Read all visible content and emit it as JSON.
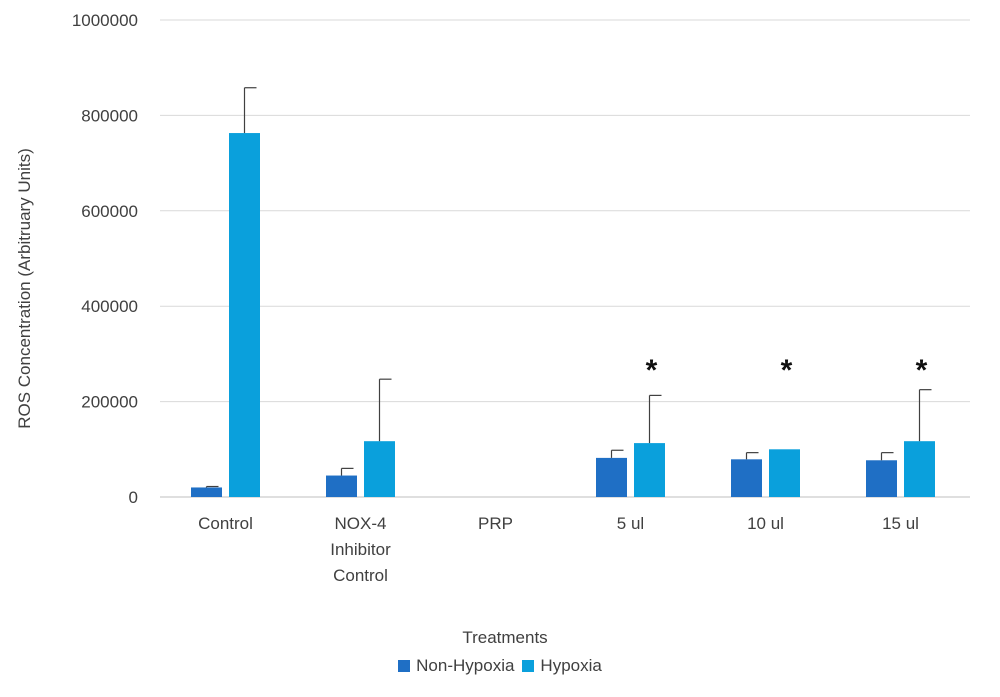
{
  "chart_data": {
    "type": "bar",
    "xlabel": "Treatments",
    "ylabel": "ROS Concentration (Arbitruary Units)",
    "ylim": [
      0,
      1000000
    ],
    "yticks": [
      0,
      200000,
      400000,
      600000,
      800000,
      1000000
    ],
    "ytick_labels": [
      "0",
      "200000",
      "400000",
      "600000",
      "800000",
      "1000000"
    ],
    "grid": true,
    "legend_position": "bottom",
    "categories": [
      "Control",
      "NOX-4 Inhibitor Control",
      "PRP",
      "5 ul",
      "10 ul",
      "15 ul"
    ],
    "category_label_lines": [
      [
        "Control"
      ],
      [
        "NOX-4",
        "Inhibitor",
        "Control"
      ],
      [
        "PRP"
      ],
      [
        "5 ul"
      ],
      [
        "10 ul"
      ],
      [
        "15 ul"
      ]
    ],
    "series": [
      {
        "name": "Non-Hypoxia",
        "color": "#1f6fc5",
        "values": [
          20000,
          45000,
          0,
          82000,
          79000,
          77000
        ],
        "error": [
          2000,
          15000,
          0,
          16000,
          14000,
          16000
        ]
      },
      {
        "name": "Hypoxia",
        "color": "#0aa0dc",
        "values": [
          763000,
          117000,
          0,
          113000,
          100000,
          117000
        ],
        "error": [
          95000,
          130000,
          0,
          100000,
          0,
          108000
        ]
      }
    ],
    "annotations": [
      {
        "category": "5 ul",
        "text": "*"
      },
      {
        "category": "10 ul",
        "text": "*"
      },
      {
        "category": "15 ul",
        "text": "*"
      }
    ]
  }
}
